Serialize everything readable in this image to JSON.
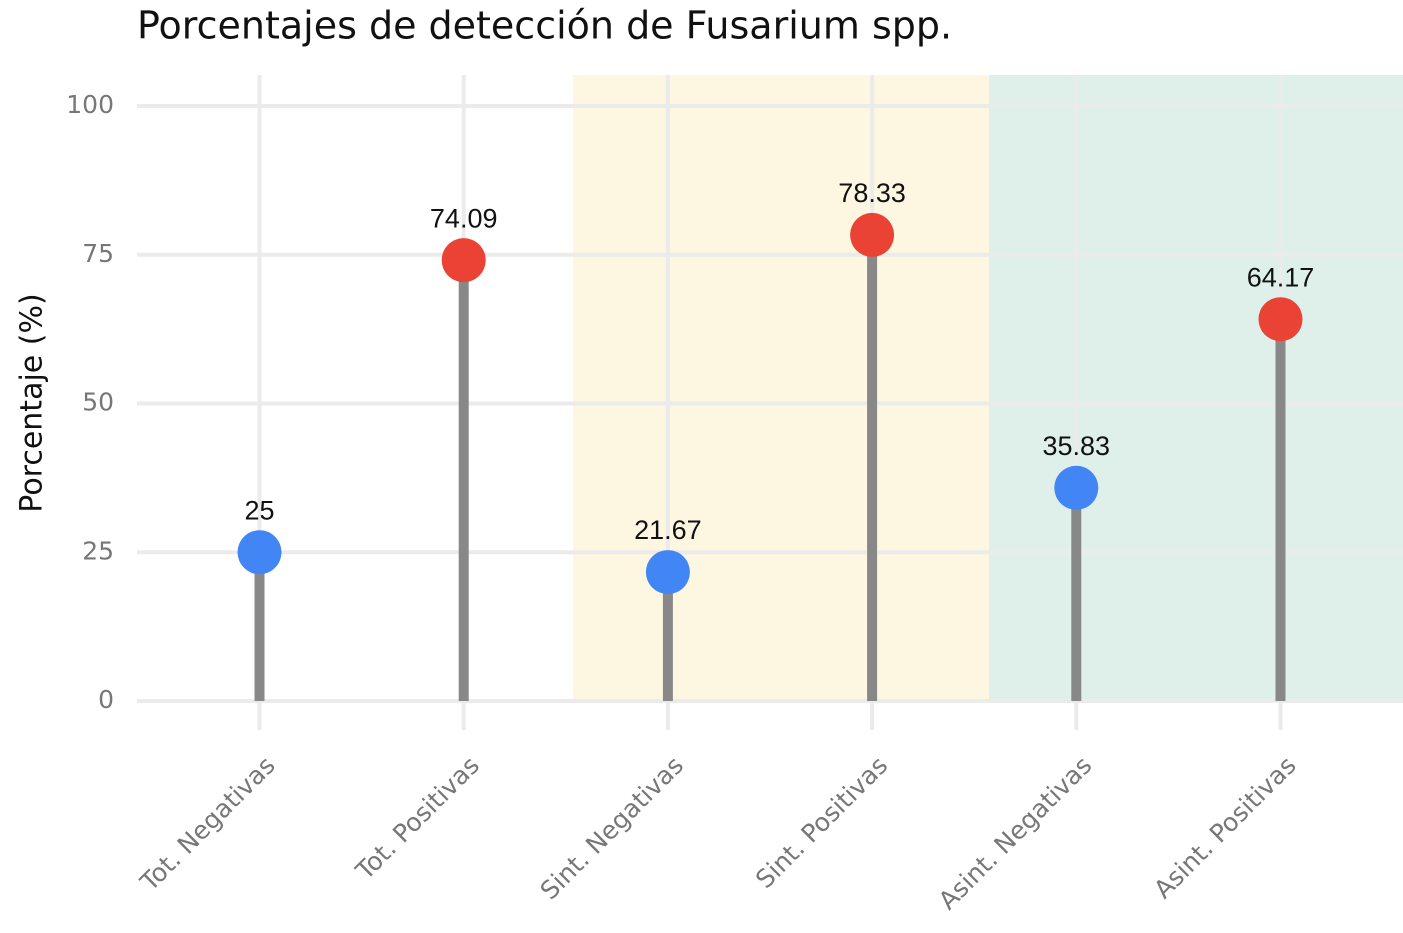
{
  "chart_data": {
    "type": "lollipop",
    "title": "Porcentajes de detección de Fusarium spp.",
    "y_label": "Porcentaje (%)",
    "categories": [
      "Tot. Negativas",
      "Tot. Positivas",
      "Sint. Negativas",
      "Sint. Positivas",
      "Asint. Negativas",
      "Asint. Positivas"
    ],
    "values": [
      25,
      74.09,
      21.67,
      78.33,
      35.83,
      64.17
    ],
    "colors": [
      "#4285f4",
      "#ea4335",
      "#4285f4",
      "#ea4335",
      "#4285f4",
      "#ea4335"
    ],
    "stem_color": "#888888",
    "ylim": [
      0,
      100
    ],
    "yticks": [
      0,
      25,
      50,
      75,
      100
    ],
    "grid": true
  }
}
